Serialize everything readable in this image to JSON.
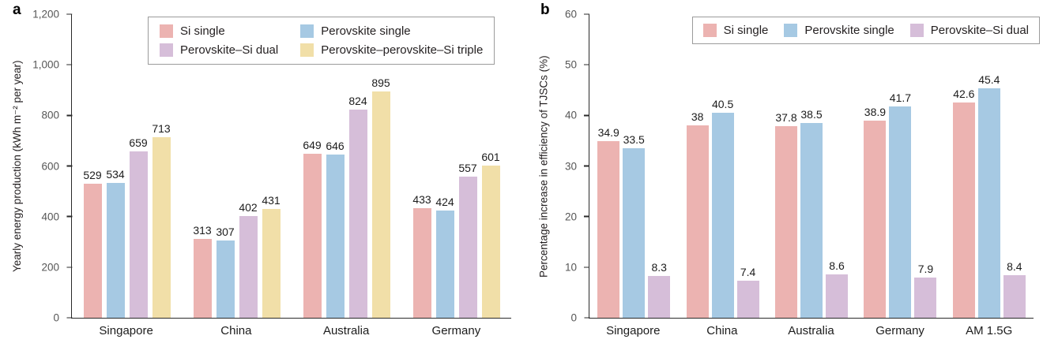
{
  "figure": {
    "panels": [
      {
        "letter": "a"
      },
      {
        "letter": "b"
      }
    ]
  },
  "chart_data": [
    {
      "type": "bar",
      "panel_letter": "a",
      "title": "",
      "xlabel": "",
      "ylabel": "Yearly energy production (kWh m⁻² per year)",
      "ylim": [
        0,
        1200
      ],
      "grid": false,
      "legend_position": "top",
      "categories": [
        "Singapore",
        "China",
        "Australia",
        "Germany"
      ],
      "series": [
        {
          "name": "Si single",
          "color": "#ecb3b1",
          "values": [
            529,
            313,
            649,
            433
          ],
          "labels": [
            "529",
            "313",
            "649",
            "433"
          ]
        },
        {
          "name": "Perovskite single",
          "color": "#a6c9e3",
          "values": [
            534,
            307,
            646,
            424
          ],
          "labels": [
            "534",
            "307",
            "646",
            "424"
          ]
        },
        {
          "name": "Perovskite–Si dual",
          "color": "#d6bed9",
          "values": [
            659,
            402,
            824,
            557
          ],
          "labels": [
            "659",
            "402",
            "824",
            "557"
          ]
        },
        {
          "name": "Perovskite–perovskite–Si triple",
          "color": "#f1dfa8",
          "values": [
            713,
            431,
            895,
            601
          ],
          "labels": [
            "713",
            "431",
            "895",
            "601"
          ]
        }
      ],
      "yticks": [
        {
          "value": 0,
          "label": "0"
        },
        {
          "value": 200,
          "label": "200"
        },
        {
          "value": 400,
          "label": "400"
        },
        {
          "value": 600,
          "label": "600"
        },
        {
          "value": 800,
          "label": "800"
        },
        {
          "value": 1000,
          "label": "1,000"
        },
        {
          "value": 1200,
          "label": "1,200"
        }
      ]
    },
    {
      "type": "bar",
      "panel_letter": "b",
      "title": "",
      "xlabel": "",
      "ylabel": "Percentage increase in efficiency of TJSCs (%)",
      "ylim": [
        0,
        60
      ],
      "grid": false,
      "legend_position": "top-right",
      "categories": [
        "Singapore",
        "China",
        "Australia",
        "Germany",
        "AM 1.5G"
      ],
      "series": [
        {
          "name": "Si single",
          "color": "#ecb3b1",
          "values": [
            34.9,
            38,
            37.8,
            38.9,
            42.6
          ],
          "labels": [
            "34.9",
            "38",
            "37.8",
            "38.9",
            "42.6"
          ]
        },
        {
          "name": "Perovskite single",
          "color": "#a6c9e3",
          "values": [
            33.5,
            40.5,
            38.5,
            41.7,
            45.4
          ],
          "labels": [
            "33.5",
            "40.5",
            "38.5",
            "41.7",
            "45.4"
          ]
        },
        {
          "name": "Perovskite–Si dual",
          "color": "#d6bed9",
          "values": [
            8.3,
            7.4,
            8.6,
            7.9,
            8.4
          ],
          "labels": [
            "8.3",
            "7.4",
            "8.6",
            "7.9",
            "8.4"
          ]
        }
      ],
      "yticks": [
        {
          "value": 0,
          "label": "0"
        },
        {
          "value": 10,
          "label": "10"
        },
        {
          "value": 20,
          "label": "20"
        },
        {
          "value": 30,
          "label": "30"
        },
        {
          "value": 40,
          "label": "40"
        },
        {
          "value": 50,
          "label": "50"
        },
        {
          "value": 60,
          "label": "60"
        }
      ]
    }
  ]
}
